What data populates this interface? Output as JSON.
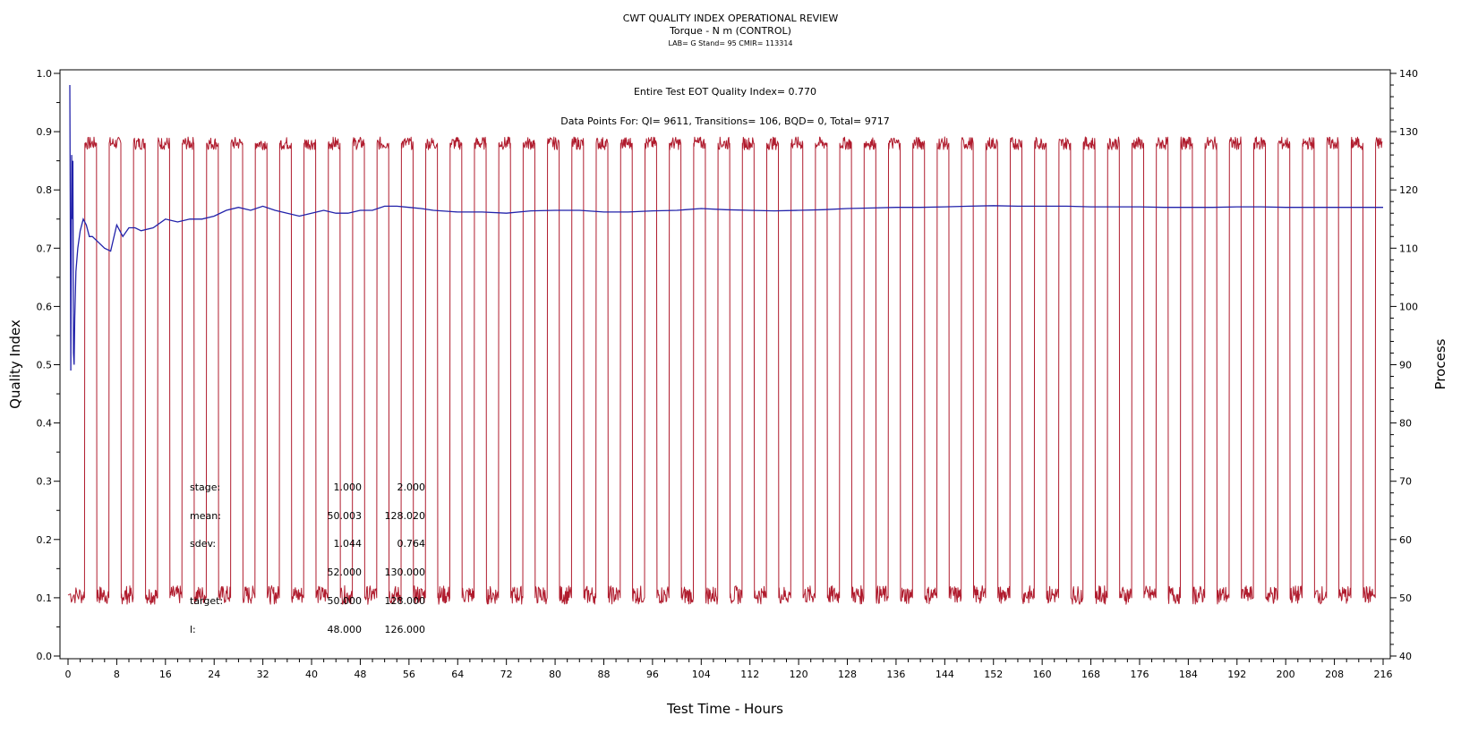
{
  "chart_data": {
    "type": "line",
    "title": "CWT QUALITY INDEX OPERATIONAL REVIEW",
    "subtitle": "Torque - N m (CONTROL)",
    "meta": "LAB= G Stand= 95 CMIR= 113314",
    "xlabel": "Test Time - Hours",
    "ylabel_left": "Quality Index",
    "ylabel_right": "Process",
    "xlim": [
      0,
      216
    ],
    "ylim_left": [
      0.0,
      1.0
    ],
    "ylim_right": [
      40,
      140
    ],
    "x_ticks": [
      0,
      8,
      16,
      24,
      32,
      40,
      48,
      56,
      64,
      72,
      80,
      88,
      96,
      104,
      112,
      120,
      128,
      136,
      144,
      152,
      160,
      168,
      176,
      184,
      192,
      200,
      208,
      216
    ],
    "y_left_ticks": [
      "0.0",
      "0.1",
      "0.2",
      "0.3",
      "0.4",
      "0.5",
      "0.6",
      "0.7",
      "0.8",
      "0.9",
      "1.0"
    ],
    "y_right_ticks": [
      40,
      50,
      60,
      70,
      80,
      90,
      100,
      110,
      120,
      130,
      140
    ],
    "annotations": {
      "quality_index": "Entire Test EOT Quality Index=  0.770",
      "data_points": "Data Points For: QI=  9611, Transitions=   106, BQD=     0, Total=  9717"
    },
    "stats_table": [
      {
        "label": "stage:",
        "v1": "1.000",
        "v2": "2.000"
      },
      {
        "label": "mean:",
        "v1": "50.003",
        "v2": "128.020"
      },
      {
        "label": "sdev:",
        "v1": "1.044",
        "v2": "0.764"
      },
      {
        "label": "",
        "v1": "52.000",
        "v2": "130.000"
      },
      {
        "label": "target:",
        "v1": "50.000",
        "v2": "128.000"
      },
      {
        "label": "l:",
        "v1": "48.000",
        "v2": "126.000"
      }
    ],
    "series": [
      {
        "axis": "left",
        "color": "#2222aa",
        "x": [
          0.3,
          0.45,
          0.6,
          0.7,
          0.8,
          0.9,
          1.0,
          1.1,
          1.3,
          1.6,
          2.0,
          2.5,
          3.0,
          3.5,
          4.0,
          5.0,
          6.0,
          7.0,
          8.0,
          9.0,
          10.0,
          11.0,
          12.0,
          14.0,
          16.0,
          18.0,
          20.0,
          22.0,
          24.0,
          26.0,
          28.0,
          30.0,
          32.0,
          34.0,
          36.0,
          38.0,
          40.0,
          42.0,
          44.0,
          46.0,
          48.0,
          50.0,
          52.0,
          54.0,
          56.0,
          58.0,
          60.0,
          64.0,
          68.0,
          72.0,
          76.0,
          80.0,
          84.0,
          88.0,
          92.0,
          96.0,
          100.0,
          104.0,
          108.0,
          112.0,
          116.0,
          120.0,
          124.0,
          128.0,
          132.0,
          136.0,
          140.0,
          144.0,
          148.0,
          152.0,
          156.0,
          160.0,
          164.0,
          168.0,
          172.0,
          176.0,
          180.0,
          184.0,
          188.0,
          192.0,
          196.0,
          200.0,
          204.0,
          208.0,
          212.0,
          216.0
        ],
        "values": [
          0.98,
          0.49,
          0.86,
          0.75,
          0.85,
          0.52,
          0.5,
          0.58,
          0.66,
          0.7,
          0.73,
          0.75,
          0.74,
          0.72,
          0.72,
          0.71,
          0.7,
          0.695,
          0.74,
          0.72,
          0.735,
          0.735,
          0.73,
          0.735,
          0.75,
          0.745,
          0.75,
          0.75,
          0.755,
          0.765,
          0.77,
          0.765,
          0.772,
          0.765,
          0.76,
          0.755,
          0.76,
          0.765,
          0.76,
          0.76,
          0.765,
          0.765,
          0.772,
          0.772,
          0.77,
          0.768,
          0.765,
          0.762,
          0.762,
          0.76,
          0.764,
          0.765,
          0.765,
          0.762,
          0.762,
          0.764,
          0.765,
          0.768,
          0.766,
          0.765,
          0.764,
          0.765,
          0.766,
          0.768,
          0.769,
          0.77,
          0.77,
          0.771,
          0.772,
          0.773,
          0.772,
          0.772,
          0.772,
          0.771,
          0.771,
          0.771,
          0.77,
          0.77,
          0.77,
          0.771,
          0.771,
          0.77,
          0.77,
          0.77,
          0.77,
          0.77
        ]
      },
      {
        "axis": "right",
        "color": "#b01c2e",
        "cycle_period_hours": 4,
        "low": 50,
        "high": 128,
        "first_high_start": 2.7,
        "high_fraction": 0.5
      }
    ]
  }
}
